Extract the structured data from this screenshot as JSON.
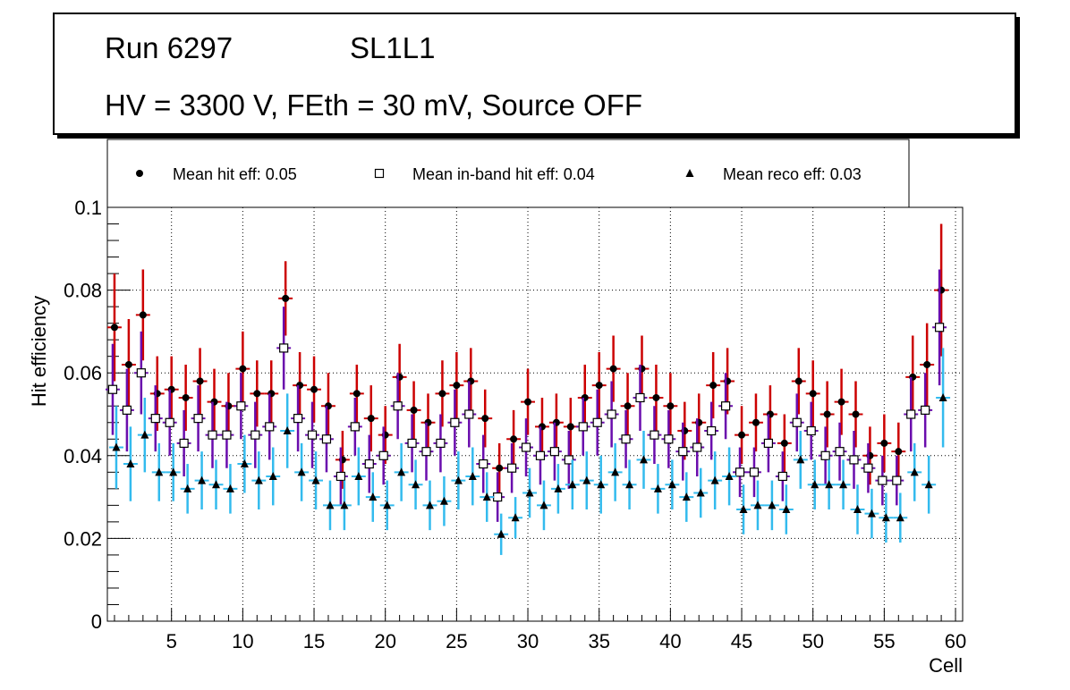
{
  "header": {
    "run": "Run 6297",
    "layer": "SL1L1",
    "conditions": "HV = 3300 V, FEth = 30 mV, Source OFF"
  },
  "colors": {
    "hit_marker": "#000000",
    "hit_error": "#cc0000",
    "inband_error": "#6a0dad",
    "reco_error": "#33bbee",
    "grid": "#000000"
  },
  "chart_data": {
    "type": "scatter",
    "title": "",
    "xlabel": "Cell",
    "ylabel": "Hit efficiency",
    "xlim": [
      0.5,
      60.5
    ],
    "ylim": [
      0,
      0.1
    ],
    "xticks": [
      5,
      10,
      15,
      20,
      25,
      30,
      35,
      40,
      45,
      50,
      55,
      60
    ],
    "yticks": [
      0,
      0.02,
      0.04,
      0.06,
      0.08,
      0.1
    ],
    "ytick_labels": [
      "0",
      "0.02",
      "0.04",
      "0.06",
      "0.08",
      "0.1"
    ],
    "legend_position": "top",
    "series": [
      {
        "name": "Mean hit  eff: 0.05",
        "marker": "filled-circle",
        "x": [
          1,
          2,
          3,
          4,
          5,
          6,
          7,
          8,
          9,
          10,
          11,
          12,
          13,
          14,
          15,
          16,
          17,
          18,
          19,
          20,
          21,
          22,
          23,
          24,
          25,
          26,
          27,
          28,
          29,
          30,
          31,
          32,
          33,
          34,
          35,
          36,
          37,
          38,
          39,
          40,
          41,
          42,
          43,
          44,
          45,
          46,
          47,
          48,
          49,
          50,
          51,
          52,
          53,
          54,
          55,
          56,
          57,
          58,
          59
        ],
        "values": [
          0.071,
          0.062,
          0.074,
          0.055,
          0.056,
          0.054,
          0.058,
          0.053,
          0.052,
          0.061,
          0.055,
          0.055,
          0.078,
          0.057,
          0.056,
          0.052,
          0.039,
          0.055,
          0.049,
          0.045,
          0.059,
          0.051,
          0.048,
          0.055,
          0.057,
          0.058,
          0.049,
          0.037,
          0.044,
          0.053,
          0.047,
          0.048,
          0.047,
          0.054,
          0.057,
          0.061,
          0.052,
          0.061,
          0.054,
          0.052,
          0.046,
          0.048,
          0.057,
          0.058,
          0.045,
          0.048,
          0.05,
          0.043,
          0.058,
          0.055,
          0.05,
          0.053,
          0.05,
          0.04,
          0.043,
          0.041,
          0.059,
          0.062,
          0.08
        ],
        "errors": [
          0.013,
          0.011,
          0.011,
          0.009,
          0.008,
          0.008,
          0.008,
          0.008,
          0.008,
          0.009,
          0.008,
          0.008,
          0.009,
          0.008,
          0.008,
          0.008,
          0.007,
          0.007,
          0.008,
          0.007,
          0.008,
          0.007,
          0.007,
          0.008,
          0.008,
          0.008,
          0.007,
          0.006,
          0.007,
          0.008,
          0.007,
          0.007,
          0.007,
          0.008,
          0.008,
          0.008,
          0.008,
          0.008,
          0.008,
          0.008,
          0.007,
          0.007,
          0.008,
          0.008,
          0.007,
          0.007,
          0.007,
          0.007,
          0.008,
          0.008,
          0.008,
          0.008,
          0.008,
          0.007,
          0.007,
          0.007,
          0.01,
          0.01,
          0.016
        ]
      },
      {
        "name": "Mean in-band hit eff: 0.04",
        "marker": "open-square",
        "x": [
          1,
          2,
          3,
          4,
          5,
          6,
          7,
          8,
          9,
          10,
          11,
          12,
          13,
          14,
          15,
          16,
          17,
          18,
          19,
          20,
          21,
          22,
          23,
          24,
          25,
          26,
          27,
          28,
          29,
          30,
          31,
          32,
          33,
          34,
          35,
          36,
          37,
          38,
          39,
          40,
          41,
          42,
          43,
          44,
          45,
          46,
          47,
          48,
          49,
          50,
          51,
          52,
          53,
          54,
          55,
          56,
          57,
          58,
          59
        ],
        "values": [
          0.056,
          0.051,
          0.06,
          0.049,
          0.048,
          0.043,
          0.049,
          0.045,
          0.045,
          0.052,
          0.045,
          0.047,
          0.066,
          0.049,
          0.045,
          0.044,
          0.035,
          0.047,
          0.038,
          0.04,
          0.052,
          0.043,
          0.041,
          0.043,
          0.048,
          0.05,
          0.038,
          0.03,
          0.037,
          0.042,
          0.04,
          0.041,
          0.039,
          0.047,
          0.048,
          0.05,
          0.044,
          0.054,
          0.045,
          0.044,
          0.041,
          0.042,
          0.046,
          0.052,
          0.036,
          0.036,
          0.043,
          0.035,
          0.048,
          0.046,
          0.04,
          0.041,
          0.039,
          0.037,
          0.034,
          0.034,
          0.05,
          0.051,
          0.071
        ],
        "errors": [
          0.011,
          0.01,
          0.01,
          0.008,
          0.008,
          0.008,
          0.008,
          0.008,
          0.008,
          0.008,
          0.008,
          0.008,
          0.01,
          0.008,
          0.008,
          0.008,
          0.007,
          0.007,
          0.007,
          0.007,
          0.008,
          0.007,
          0.007,
          0.007,
          0.008,
          0.008,
          0.007,
          0.006,
          0.006,
          0.007,
          0.007,
          0.007,
          0.007,
          0.007,
          0.008,
          0.008,
          0.007,
          0.008,
          0.007,
          0.007,
          0.007,
          0.007,
          0.007,
          0.008,
          0.006,
          0.006,
          0.007,
          0.006,
          0.007,
          0.007,
          0.007,
          0.007,
          0.007,
          0.006,
          0.006,
          0.006,
          0.009,
          0.009,
          0.014
        ]
      },
      {
        "name": "Mean reco eff: 0.03",
        "marker": "filled-triangle",
        "x": [
          1,
          2,
          3,
          4,
          5,
          6,
          7,
          8,
          9,
          10,
          11,
          12,
          13,
          14,
          15,
          16,
          17,
          18,
          19,
          20,
          21,
          22,
          23,
          24,
          25,
          26,
          27,
          28,
          29,
          30,
          31,
          32,
          33,
          34,
          35,
          36,
          37,
          38,
          39,
          40,
          41,
          42,
          43,
          44,
          45,
          46,
          47,
          48,
          49,
          50,
          51,
          52,
          53,
          54,
          55,
          56,
          57,
          58,
          59
        ],
        "values": [
          0.042,
          0.038,
          0.045,
          0.036,
          0.036,
          0.032,
          0.034,
          0.033,
          0.032,
          0.038,
          0.034,
          0.035,
          0.046,
          0.036,
          0.034,
          0.028,
          0.028,
          0.035,
          0.03,
          0.028,
          0.036,
          0.033,
          0.028,
          0.029,
          0.034,
          0.035,
          0.03,
          0.021,
          0.025,
          0.031,
          0.028,
          0.032,
          0.033,
          0.034,
          0.033,
          0.036,
          0.033,
          0.039,
          0.032,
          0.033,
          0.03,
          0.031,
          0.034,
          0.035,
          0.027,
          0.028,
          0.028,
          0.027,
          0.039,
          0.033,
          0.033,
          0.033,
          0.027,
          0.026,
          0.025,
          0.025,
          0.036,
          0.033,
          0.054
        ],
        "errors": [
          0.01,
          0.009,
          0.009,
          0.007,
          0.007,
          0.006,
          0.007,
          0.006,
          0.006,
          0.007,
          0.007,
          0.007,
          0.009,
          0.007,
          0.007,
          0.006,
          0.006,
          0.007,
          0.006,
          0.006,
          0.007,
          0.006,
          0.006,
          0.006,
          0.007,
          0.007,
          0.006,
          0.005,
          0.005,
          0.006,
          0.006,
          0.006,
          0.006,
          0.007,
          0.007,
          0.007,
          0.006,
          0.007,
          0.006,
          0.006,
          0.006,
          0.006,
          0.007,
          0.007,
          0.006,
          0.006,
          0.006,
          0.006,
          0.007,
          0.006,
          0.006,
          0.006,
          0.006,
          0.006,
          0.006,
          0.006,
          0.007,
          0.007,
          0.012
        ]
      }
    ]
  }
}
